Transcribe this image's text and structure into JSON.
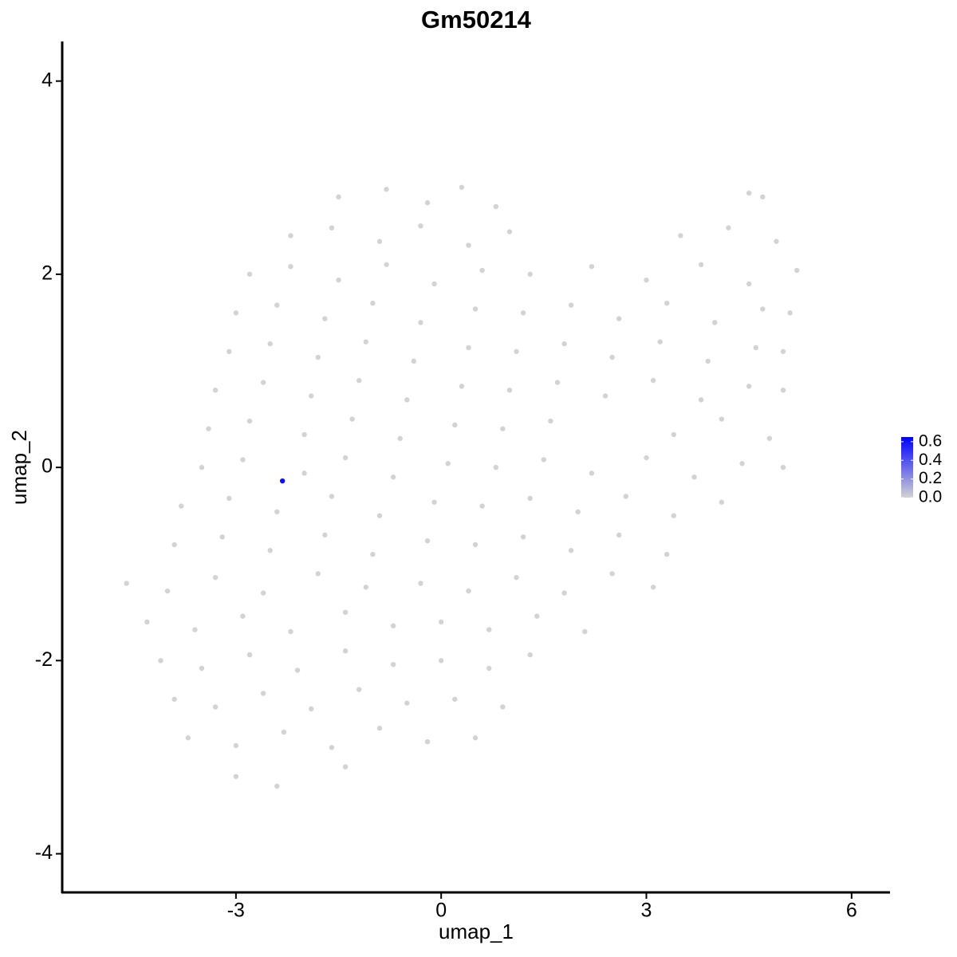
{
  "chart_data": {
    "type": "scatter",
    "title": "Gm50214",
    "x_label": "umap_1",
    "y_label": "umap_2",
    "xlim": [
      -5.54,
      6.55
    ],
    "ylim": [
      -4.4,
      4.41
    ],
    "xticks": [
      -3,
      0,
      3,
      6
    ],
    "yticks": [
      -4,
      -2,
      0,
      2,
      4
    ],
    "color_low": "#d3d3d3",
    "color_high": "#0000ff",
    "colorbar_lim": [
      0,
      0.65
    ],
    "colorbar_ticks": [
      {
        "value": 0,
        "label": "0.0"
      },
      {
        "value": 0.2,
        "label": "0.2"
      },
      {
        "value": 0.4,
        "label": "0.4"
      },
      {
        "value": 0.6,
        "label": "0.6"
      }
    ],
    "x": [
      -1.5,
      -0.8,
      -0.2,
      0.3,
      0.8,
      4.5,
      4.7,
      -2.2,
      -1.6,
      -0.9,
      -0.3,
      0.4,
      1.0,
      3.5,
      4.2,
      4.9,
      -2.8,
      -2.2,
      -1.5,
      -0.8,
      -0.1,
      0.6,
      1.3,
      2.2,
      3.0,
      3.8,
      4.5,
      5.2,
      -3.0,
      -2.4,
      -1.7,
      -1.0,
      -0.3,
      0.5,
      1.2,
      1.9,
      2.6,
      3.3,
      4.0,
      4.7,
      5.1,
      -3.1,
      -2.5,
      -1.8,
      -1.1,
      -0.4,
      0.4,
      1.1,
      1.8,
      2.5,
      3.2,
      3.9,
      4.6,
      5.0,
      -3.3,
      -2.6,
      -1.9,
      -1.2,
      -0.5,
      0.3,
      1.0,
      1.7,
      2.4,
      3.1,
      3.8,
      4.5,
      5.0,
      -3.4,
      -2.8,
      -2.0,
      -1.3,
      -0.6,
      0.2,
      0.9,
      1.6,
      3.4,
      4.1,
      4.8,
      -3.5,
      -2.9,
      -2.0,
      -1.4,
      -0.7,
      0.1,
      0.8,
      1.5,
      2.2,
      3.0,
      3.7,
      4.4,
      5.0,
      -3.8,
      -3.1,
      -2.4,
      -1.6,
      -0.9,
      -0.1,
      0.6,
      1.3,
      2.0,
      2.7,
      3.4,
      4.1,
      -3.9,
      -3.2,
      -2.5,
      -1.7,
      -1.0,
      -0.2,
      0.5,
      1.2,
      1.9,
      2.6,
      3.3,
      -4.6,
      -4.0,
      -3.3,
      -2.6,
      -1.8,
      -1.1,
      -0.3,
      0.4,
      1.1,
      1.8,
      2.5,
      3.1,
      -4.3,
      -3.6,
      -2.9,
      -2.2,
      -1.4,
      -0.7,
      0.0,
      0.7,
      1.4,
      2.1,
      -4.1,
      -3.5,
      -2.8,
      -2.1,
      -1.4,
      -0.7,
      0.0,
      0.7,
      1.3,
      -3.9,
      -3.3,
      -2.6,
      -1.9,
      -1.2,
      -0.5,
      0.2,
      0.9,
      -3.7,
      -3.0,
      -2.3,
      -1.6,
      -0.9,
      -0.2,
      0.5,
      -3.0,
      -2.4,
      -1.4,
      -2.32
    ],
    "values": [
      2.8,
      2.88,
      2.74,
      2.9,
      2.7,
      2.84,
      2.8,
      2.4,
      2.48,
      2.34,
      2.5,
      2.3,
      2.44,
      2.4,
      2.48,
      2.34,
      2.0,
      2.08,
      1.94,
      2.1,
      1.9,
      2.04,
      2.0,
      2.08,
      1.94,
      2.1,
      1.9,
      2.04,
      1.6,
      1.68,
      1.54,
      1.7,
      1.5,
      1.64,
      1.6,
      1.68,
      1.54,
      1.7,
      1.5,
      1.64,
      1.6,
      1.2,
      1.28,
      1.14,
      1.3,
      1.1,
      1.24,
      1.2,
      1.28,
      1.14,
      1.3,
      1.1,
      1.24,
      1.2,
      0.8,
      0.88,
      0.74,
      0.9,
      0.7,
      0.84,
      0.8,
      0.88,
      0.74,
      0.9,
      0.7,
      0.84,
      0.8,
      0.4,
      0.48,
      0.34,
      0.5,
      0.3,
      0.44,
      0.4,
      0.48,
      0.34,
      0.5,
      0.3,
      0.0,
      0.08,
      -0.06,
      0.1,
      -0.1,
      0.04,
      0.0,
      0.08,
      -0.06,
      0.1,
      -0.1,
      0.04,
      0.0,
      -0.4,
      -0.32,
      -0.46,
      -0.3,
      -0.5,
      -0.36,
      -0.4,
      -0.32,
      -0.46,
      -0.3,
      -0.5,
      -0.36,
      -0.8,
      -0.72,
      -0.86,
      -0.7,
      -0.9,
      -0.76,
      -0.8,
      -0.72,
      -0.86,
      -0.7,
      -0.9,
      -1.2,
      -1.28,
      -1.14,
      -1.3,
      -1.1,
      -1.24,
      -1.2,
      -1.28,
      -1.14,
      -1.3,
      -1.1,
      -1.24,
      -1.6,
      -1.68,
      -1.54,
      -1.7,
      -1.5,
      -1.64,
      -1.6,
      -1.68,
      -1.54,
      -1.7,
      -2.0,
      -2.08,
      -1.94,
      -2.1,
      -1.9,
      -2.04,
      -2.0,
      -2.08,
      -1.94,
      -2.4,
      -2.48,
      -2.34,
      -2.5,
      -2.3,
      -2.44,
      -2.4,
      -2.48,
      -2.8,
      -2.88,
      -2.74,
      -2.9,
      -2.7,
      -2.84,
      -2.8,
      -3.2,
      -3.3,
      -3.1,
      -0.14
    ],
    "expression": [
      0,
      0,
      0,
      0,
      0,
      0,
      0,
      0,
      0,
      0,
      0,
      0,
      0,
      0,
      0,
      0,
      0,
      0,
      0,
      0,
      0,
      0,
      0,
      0,
      0,
      0,
      0,
      0,
      0,
      0,
      0,
      0,
      0,
      0,
      0,
      0,
      0,
      0,
      0,
      0,
      0,
      0,
      0,
      0,
      0,
      0,
      0,
      0,
      0,
      0,
      0,
      0,
      0,
      0,
      0,
      0,
      0,
      0,
      0,
      0,
      0,
      0,
      0,
      0,
      0,
      0,
      0,
      0,
      0,
      0,
      0,
      0,
      0,
      0,
      0,
      0,
      0,
      0,
      0,
      0,
      0,
      0,
      0,
      0,
      0,
      0,
      0,
      0,
      0,
      0,
      0,
      0,
      0,
      0,
      0,
      0,
      0,
      0,
      0,
      0,
      0,
      0,
      0,
      0,
      0,
      0,
      0,
      0,
      0,
      0,
      0,
      0,
      0,
      0,
      0,
      0,
      0,
      0,
      0,
      0,
      0,
      0,
      0,
      0,
      0,
      0,
      0,
      0,
      0,
      0,
      0,
      0,
      0,
      0,
      0,
      0,
      0,
      0,
      0,
      0,
      0,
      0,
      0,
      0,
      0,
      0,
      0,
      0,
      0,
      0,
      0,
      0,
      0,
      0,
      0,
      0,
      0,
      0,
      0,
      0,
      0,
      0,
      0,
      0.6
    ]
  }
}
